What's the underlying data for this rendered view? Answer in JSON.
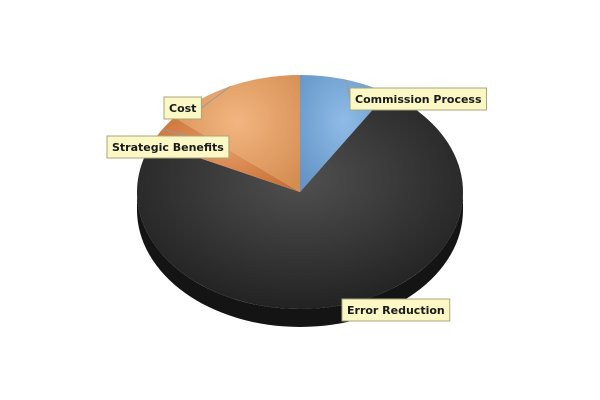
{
  "chart_data": {
    "type": "pie",
    "style": "3d",
    "title": "",
    "legend": "none",
    "slices": [
      {
        "label": "Commission Process",
        "value": 9,
        "color": "#6fa8e0",
        "label_anchor": "right"
      },
      {
        "label": "Error Reduction",
        "value": 73,
        "color": "#1f1f1f",
        "label_anchor": "right"
      },
      {
        "label": "Strategic Benefits",
        "value": 4,
        "color": "#e07d3a",
        "label_anchor": "left"
      },
      {
        "label": "Cost",
        "value": 14,
        "color": "#f0a05c",
        "label_anchor": "left"
      }
    ]
  }
}
